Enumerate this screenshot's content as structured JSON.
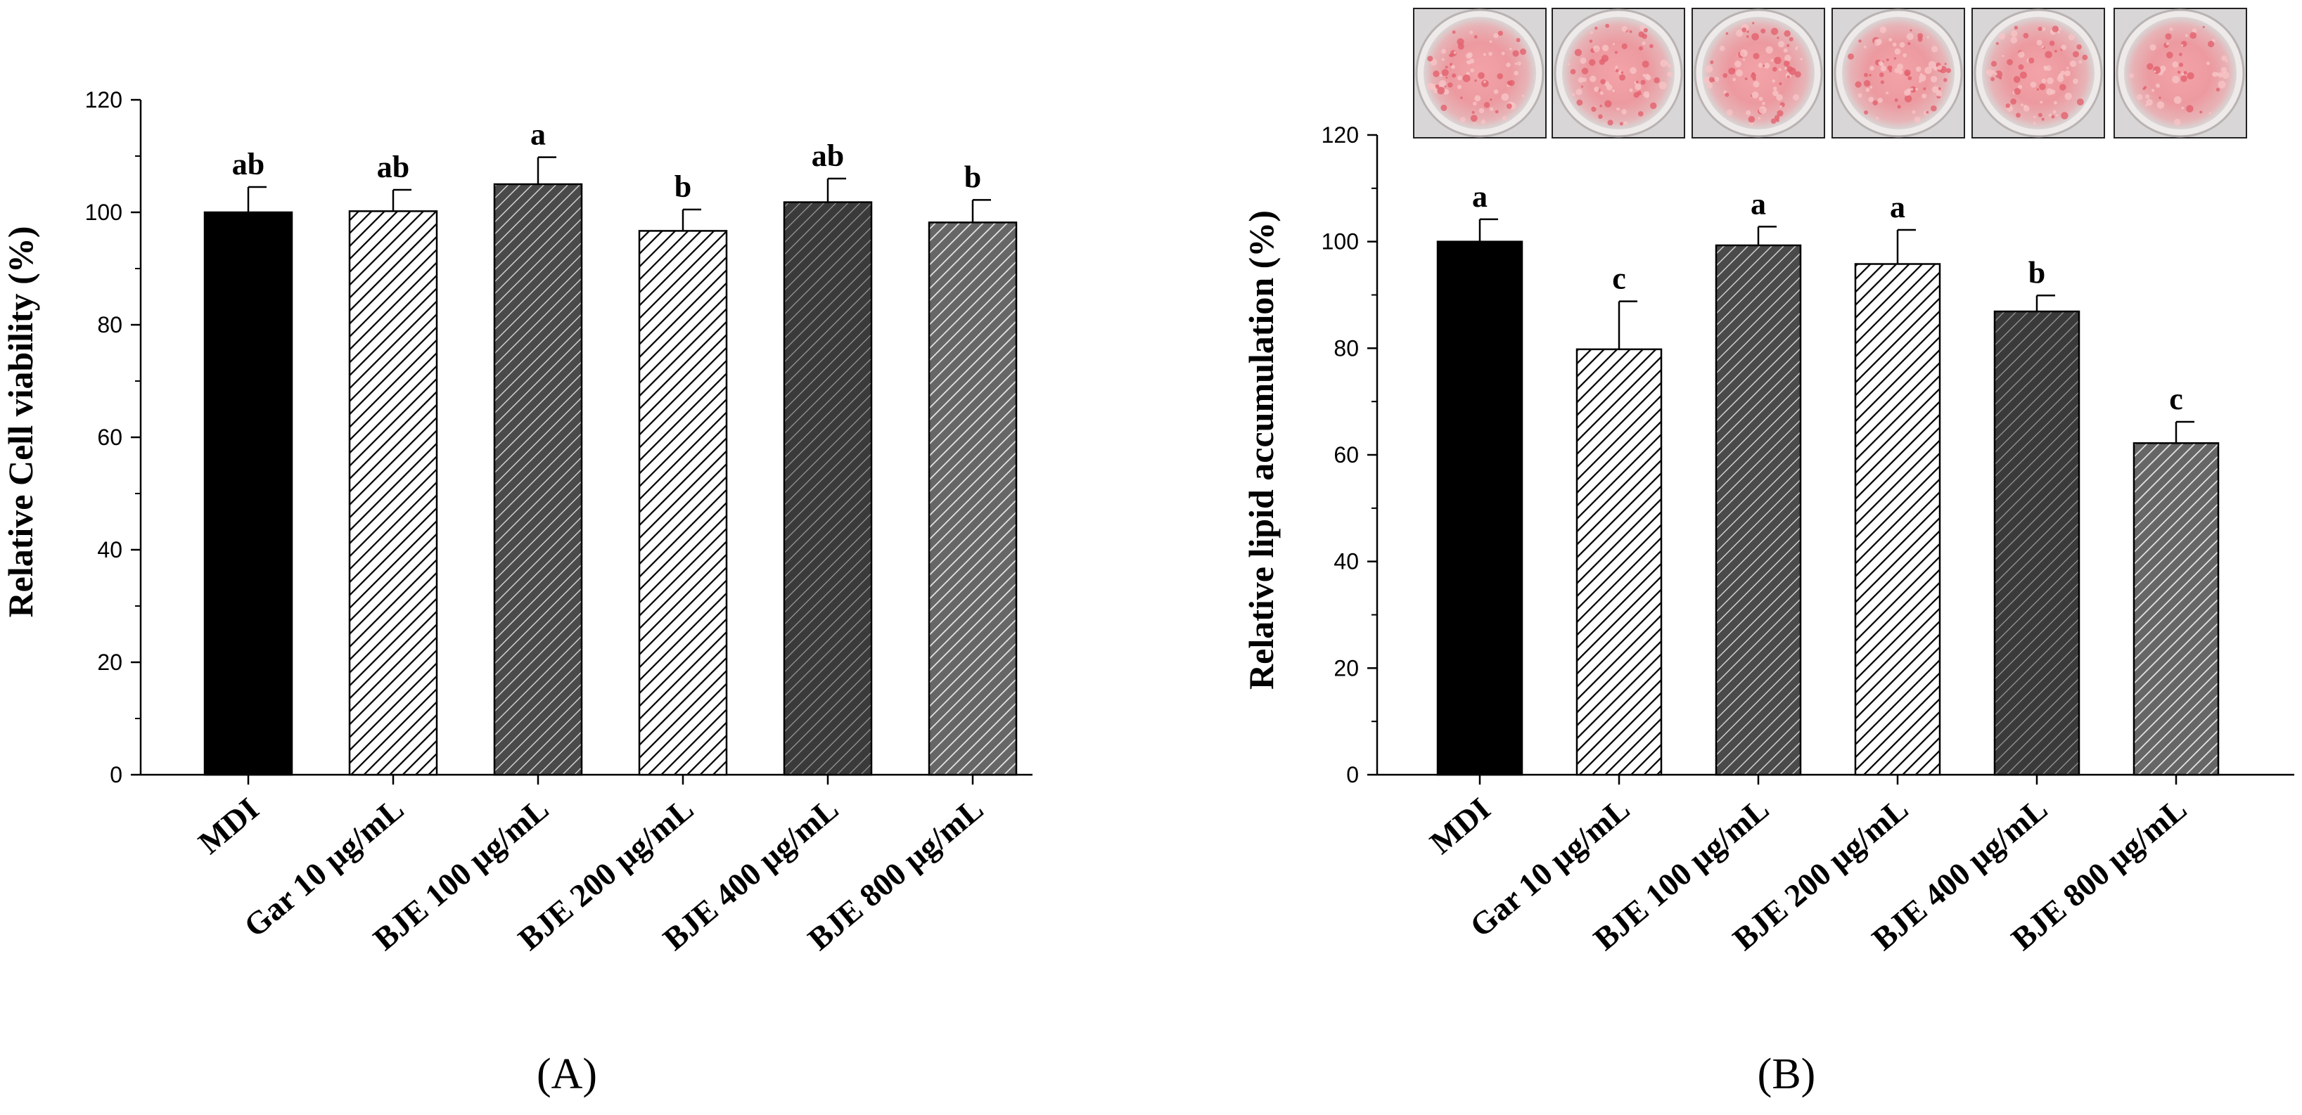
{
  "chart_data": [
    {
      "type": "bar",
      "panel_label": "(A)",
      "ylabel": "Relative Cell viability (%)",
      "xlabel": "",
      "ylim": [
        0,
        120
      ],
      "yticks": [
        0,
        20,
        40,
        60,
        80,
        100,
        120
      ],
      "categories": [
        "MDI",
        "Gar 10 µg/mL",
        "BJE 100 µg/mL",
        "BJE 200 µg/mL",
        "BJE 400 µg/mL",
        "BJE 800 µg/mL"
      ],
      "values": [
        100,
        100.2,
        105,
        96.7,
        101.8,
        98.2
      ],
      "errors": [
        4.5,
        3.8,
        4.8,
        3.8,
        4.2,
        4.0
      ],
      "significance": [
        "ab",
        "ab",
        "a",
        "b",
        "ab",
        "b"
      ],
      "fills": [
        "solid-black",
        "light-hatch",
        "dark-hatch",
        "light-hatch",
        "darker-hatch",
        "mid-hatch"
      ]
    },
    {
      "type": "bar",
      "panel_label": "(B)",
      "ylabel": "Relative lipid accumulation (%)",
      "xlabel": "",
      "ylim": [
        0,
        120
      ],
      "yticks": [
        0,
        20,
        40,
        60,
        80,
        100,
        120
      ],
      "categories": [
        "MDI",
        "Gar 10 µg/mL",
        "BJE 100 µg/mL",
        "BJE 200 µg/mL",
        "BJE 400 µg/mL",
        "BJE 800 µg/mL"
      ],
      "values": [
        100,
        79.8,
        99.3,
        95.8,
        86.9,
        62.2
      ],
      "errors": [
        4.2,
        9.0,
        3.5,
        6.4,
        3.0,
        4.0
      ],
      "significance": [
        "a",
        "c",
        "a",
        "a",
        "b",
        "c"
      ],
      "fills": [
        "solid-black",
        "light-hatch",
        "dark-hatch",
        "light-hatch",
        "darker-hatch",
        "mid-hatch"
      ],
      "well_images": [
        "oil-red-o-well",
        "oil-red-o-well",
        "oil-red-o-well",
        "oil-red-o-well",
        "oil-red-o-well",
        "oil-red-o-well"
      ]
    }
  ]
}
